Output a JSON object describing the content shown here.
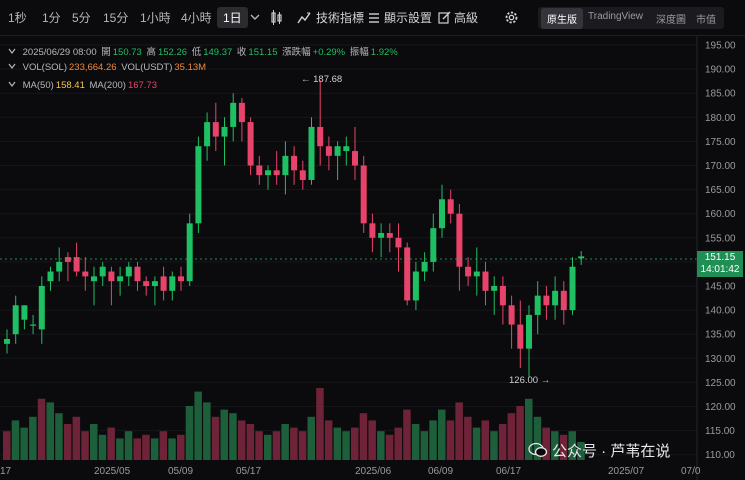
{
  "toolbar": {
    "timeframes": [
      "1秒",
      "1分",
      "5分",
      "15分",
      "1小時",
      "4小時",
      "1日"
    ],
    "active_timeframe": "1日",
    "indicators_label": "技術指標",
    "display_settings_label": "顯示設置",
    "advanced_label": "高級",
    "views": [
      "原生版",
      "TradingView",
      "深度圖",
      "市值"
    ],
    "active_view": "原生版"
  },
  "legend": {
    "date": "2025/06/29 08:00",
    "open_label": "開",
    "open": "150.73",
    "high_label": "高",
    "high": "152.26",
    "low_label": "低",
    "low": "149.37",
    "close_label": "收",
    "close": "151.15",
    "change_label": "漲跌幅",
    "change": "+0.29%",
    "amplitude_label": "振幅",
    "amplitude": "1.92%",
    "vol_sol_label": "VOL(SOL)",
    "vol_sol": "233,664.26",
    "vol_usdt_label": "VOL(USDT)",
    "vol_usdt": "35.13M",
    "ma50_label": "MA(50)",
    "ma50": "158.41",
    "ma200_label": "MA(200)",
    "ma200": "167.73"
  },
  "price_axis": [
    "195.00",
    "190.00",
    "185.00",
    "180.00",
    "175.00",
    "170.00",
    "165.00",
    "160.00",
    "155.00",
    "150.00",
    "145.00",
    "140.00",
    "135.00",
    "130.00",
    "125.00",
    "120.00",
    "115.00",
    "110.00"
  ],
  "x_axis": [
    "17",
    "2025/05",
    "05/09",
    "05/17",
    "2025/06",
    "06/09",
    "06/17",
    "2025/07",
    "07/0"
  ],
  "current_price": {
    "price": "151.15",
    "countdown": "14:01:42"
  },
  "annotations": {
    "high_marker": "187.68",
    "low_marker": "126.00"
  },
  "watermark": "公众号 · 芦苇在说",
  "colors": {
    "up": "#1fbf63",
    "down": "#e8436a",
    "background": "#0b0b0d"
  },
  "chart_data": {
    "type": "candlestick",
    "ylim": [
      110,
      195
    ],
    "candles": [
      [
        133,
        136,
        131,
        134,
        "g"
      ],
      [
        135,
        143,
        133,
        141,
        "g"
      ],
      [
        141,
        141,
        136,
        138,
        "g"
      ],
      [
        137,
        139,
        135,
        137,
        "g"
      ],
      [
        136,
        147,
        133,
        145,
        "g"
      ],
      [
        146,
        149,
        144,
        148,
        "g"
      ],
      [
        148,
        153,
        146,
        150,
        "g"
      ],
      [
        150,
        152,
        146,
        151,
        "p"
      ],
      [
        151,
        154,
        147,
        148,
        "p"
      ],
      [
        148,
        151,
        144,
        147,
        "p"
      ],
      [
        147,
        149,
        141,
        146,
        "g"
      ],
      [
        147,
        150,
        145,
        149,
        "g"
      ],
      [
        148,
        149,
        141,
        146,
        "p"
      ],
      [
        146,
        149,
        143,
        147,
        "g"
      ],
      [
        147,
        150,
        145,
        149,
        "g"
      ],
      [
        149,
        150,
        144,
        146,
        "p"
      ],
      [
        146,
        147,
        143,
        145,
        "p"
      ],
      [
        145,
        147,
        141,
        146,
        "g"
      ],
      [
        147,
        149,
        142,
        144,
        "p"
      ],
      [
        144,
        148,
        142,
        147,
        "g"
      ],
      [
        147,
        149,
        144,
        146,
        "p"
      ],
      [
        146,
        160,
        145,
        158,
        "g"
      ],
      [
        158,
        176,
        156,
        174,
        "g"
      ],
      [
        174,
        181,
        171,
        179,
        "g"
      ],
      [
        179,
        183,
        173,
        176,
        "p"
      ],
      [
        176,
        180,
        170,
        178,
        "g"
      ],
      [
        178,
        185,
        175,
        183,
        "g"
      ],
      [
        183,
        184,
        175,
        179,
        "p"
      ],
      [
        179,
        180,
        168,
        170,
        "p"
      ],
      [
        170,
        172,
        166,
        168,
        "p"
      ],
      [
        168,
        170,
        165,
        169,
        "g"
      ],
      [
        169,
        173,
        166,
        168,
        "p"
      ],
      [
        168,
        175,
        164,
        172,
        "g"
      ],
      [
        172,
        174,
        166,
        169,
        "p"
      ],
      [
        169,
        171,
        165,
        167,
        "p"
      ],
      [
        167,
        180,
        166,
        178,
        "g"
      ],
      [
        178,
        187.68,
        170,
        174,
        "p"
      ],
      [
        174,
        176,
        169,
        172,
        "p"
      ],
      [
        172,
        175,
        167,
        174,
        "g"
      ],
      [
        174,
        176,
        170,
        173,
        "g"
      ],
      [
        173,
        178,
        167,
        170,
        "p"
      ],
      [
        170,
        172,
        156,
        158,
        "p"
      ],
      [
        158,
        160,
        152,
        155,
        "p"
      ],
      [
        155,
        158,
        151,
        156,
        "g"
      ],
      [
        156,
        158,
        152,
        155,
        "p"
      ],
      [
        155,
        158,
        148,
        153,
        "p"
      ],
      [
        153,
        154,
        141,
        142,
        "p"
      ],
      [
        142,
        150,
        140,
        148,
        "g"
      ],
      [
        148,
        152,
        146,
        150,
        "g"
      ],
      [
        150,
        160,
        148,
        157,
        "g"
      ],
      [
        157,
        166,
        155,
        163,
        "g"
      ],
      [
        163,
        165,
        158,
        160,
        "p"
      ],
      [
        160,
        162,
        144,
        149,
        "p"
      ],
      [
        149,
        151,
        145,
        147,
        "p"
      ],
      [
        147,
        153,
        143,
        148,
        "g"
      ],
      [
        148,
        150,
        141,
        144,
        "p"
      ],
      [
        144,
        147,
        139,
        145,
        "g"
      ],
      [
        145,
        147,
        137,
        141,
        "p"
      ],
      [
        141,
        143,
        132,
        137,
        "p"
      ],
      [
        137,
        142,
        128,
        132,
        "p"
      ],
      [
        132,
        141,
        126,
        139,
        "g"
      ],
      [
        139,
        146,
        135,
        143,
        "g"
      ],
      [
        143,
        145,
        138,
        141,
        "p"
      ],
      [
        141,
        147,
        138,
        144,
        "g"
      ],
      [
        144,
        146,
        137,
        140,
        "p"
      ],
      [
        140,
        151,
        139,
        149,
        "g"
      ],
      [
        150.73,
        152.26,
        149.37,
        151.15,
        "g"
      ]
    ],
    "volume": [
      [
        0.4,
        "p"
      ],
      [
        0.55,
        "g"
      ],
      [
        0.45,
        "g"
      ],
      [
        0.6,
        "g"
      ],
      [
        0.85,
        "p"
      ],
      [
        0.8,
        "g"
      ],
      [
        0.65,
        "g"
      ],
      [
        0.5,
        "p"
      ],
      [
        0.6,
        "p"
      ],
      [
        0.4,
        "p"
      ],
      [
        0.5,
        "g"
      ],
      [
        0.35,
        "g"
      ],
      [
        0.45,
        "p"
      ],
      [
        0.3,
        "g"
      ],
      [
        0.4,
        "g"
      ],
      [
        0.3,
        "p"
      ],
      [
        0.35,
        "p"
      ],
      [
        0.3,
        "g"
      ],
      [
        0.4,
        "p"
      ],
      [
        0.3,
        "g"
      ],
      [
        0.35,
        "p"
      ],
      [
        0.75,
        "g"
      ],
      [
        0.95,
        "g"
      ],
      [
        0.8,
        "g"
      ],
      [
        0.6,
        "p"
      ],
      [
        0.7,
        "g"
      ],
      [
        0.65,
        "g"
      ],
      [
        0.55,
        "p"
      ],
      [
        0.5,
        "p"
      ],
      [
        0.4,
        "p"
      ],
      [
        0.35,
        "g"
      ],
      [
        0.4,
        "p"
      ],
      [
        0.5,
        "g"
      ],
      [
        0.45,
        "p"
      ],
      [
        0.4,
        "p"
      ],
      [
        0.6,
        "g"
      ],
      [
        1.0,
        "p"
      ],
      [
        0.55,
        "p"
      ],
      [
        0.45,
        "g"
      ],
      [
        0.4,
        "g"
      ],
      [
        0.45,
        "p"
      ],
      [
        0.65,
        "p"
      ],
      [
        0.55,
        "p"
      ],
      [
        0.4,
        "g"
      ],
      [
        0.35,
        "p"
      ],
      [
        0.45,
        "p"
      ],
      [
        0.7,
        "p"
      ],
      [
        0.5,
        "g"
      ],
      [
        0.4,
        "g"
      ],
      [
        0.55,
        "g"
      ],
      [
        0.7,
        "g"
      ],
      [
        0.55,
        "p"
      ],
      [
        0.8,
        "p"
      ],
      [
        0.6,
        "p"
      ],
      [
        0.45,
        "g"
      ],
      [
        0.55,
        "p"
      ],
      [
        0.4,
        "g"
      ],
      [
        0.5,
        "p"
      ],
      [
        0.65,
        "p"
      ],
      [
        0.75,
        "p"
      ],
      [
        0.85,
        "g"
      ],
      [
        0.6,
        "g"
      ],
      [
        0.45,
        "p"
      ],
      [
        0.4,
        "g"
      ],
      [
        0.35,
        "p"
      ],
      [
        0.4,
        "g"
      ],
      [
        0.25,
        "g"
      ]
    ]
  }
}
